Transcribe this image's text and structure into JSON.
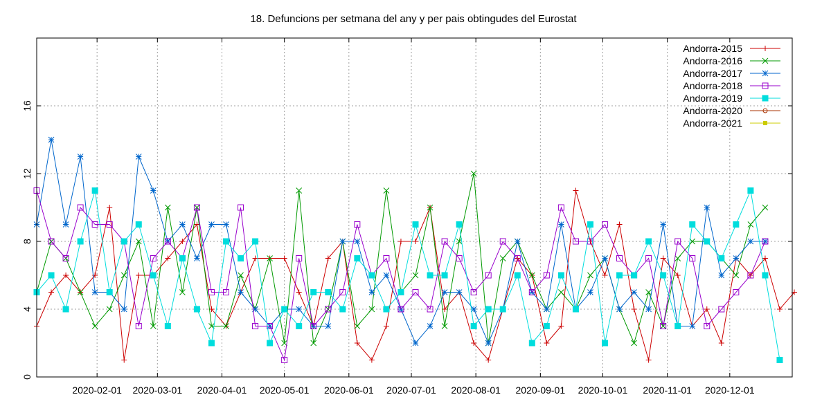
{
  "chart_data": {
    "type": "line",
    "title": "18. Defuncions per setmana del any y per pais obtingudes del Eurostat",
    "xlabel": "",
    "ylabel": "",
    "x_start": "2020-01-03",
    "x_end": "2020-12-31",
    "ylim": [
      0,
      20
    ],
    "x_ticks": [
      "2020-02-01",
      "2020-03-01",
      "2020-04-01",
      "2020-05-01",
      "2020-06-01",
      "2020-07-01",
      "2020-08-01",
      "2020-09-01",
      "2020-10-01",
      "2020-11-01",
      "2020-12-01"
    ],
    "y_ticks": [
      0,
      4,
      8,
      12,
      16
    ],
    "grid": true,
    "legend_position": "top-right",
    "series": [
      {
        "name": "Andorra-2015",
        "color": "#cc0000",
        "marker": "plus",
        "values": [
          3,
          5,
          6,
          5,
          6,
          10,
          1,
          6,
          6,
          7,
          8,
          9,
          4,
          3,
          5,
          7,
          7,
          7,
          5,
          3,
          7,
          8,
          2,
          1,
          3,
          8,
          8,
          10,
          4,
          5,
          2,
          1,
          4,
          7,
          6,
          2,
          3,
          11,
          8,
          6,
          9,
          4,
          1,
          7,
          6,
          3,
          4,
          2,
          7,
          6,
          7,
          4,
          5
        ]
      },
      {
        "name": "Andorra-2016",
        "color": "#009900",
        "marker": "cross",
        "values": [
          5,
          8,
          7,
          5,
          3,
          4,
          6,
          8,
          3,
          10,
          5,
          10,
          3,
          3,
          6,
          4,
          7,
          2,
          11,
          2,
          4,
          8,
          3,
          4,
          11,
          5,
          6,
          10,
          3,
          8,
          12,
          2,
          7,
          8,
          6,
          4,
          5,
          4,
          6,
          7,
          4,
          2,
          5,
          3,
          7,
          8,
          8,
          7,
          6,
          9,
          10
        ]
      },
      {
        "name": "Andorra-2017",
        "color": "#0066cc",
        "marker": "star",
        "values": [
          9,
          14,
          9,
          13,
          5,
          5,
          4,
          13,
          11,
          8,
          9,
          7,
          9,
          9,
          5,
          4,
          3,
          4,
          4,
          3,
          3,
          8,
          8,
          5,
          6,
          4,
          2,
          3,
          5,
          5,
          4,
          2,
          4,
          8,
          5,
          4,
          9,
          4,
          5,
          7,
          4,
          5,
          4,
          9,
          3,
          3,
          10,
          6,
          7,
          8,
          8
        ]
      },
      {
        "name": "Andorra-2018",
        "color": "#9900cc",
        "marker": "square",
        "values": [
          11,
          8,
          7,
          10,
          9,
          9,
          8,
          3,
          7,
          8,
          7,
          10,
          5,
          5,
          10,
          3,
          3,
          1,
          7,
          3,
          4,
          5,
          9,
          6,
          7,
          4,
          5,
          4,
          8,
          7,
          5,
          6,
          8,
          7,
          5,
          6,
          10,
          8,
          8,
          9,
          7,
          6,
          7,
          3,
          8,
          7,
          3,
          4,
          5,
          6,
          8
        ]
      },
      {
        "name": "Andorra-2019",
        "color": "#00dddd",
        "marker": "filled-square",
        "values": [
          5,
          6,
          4,
          8,
          11,
          5,
          8,
          9,
          6,
          3,
          7,
          4,
          2,
          8,
          7,
          8,
          2,
          4,
          3,
          5,
          5,
          4,
          7,
          6,
          4,
          5,
          9,
          6,
          6,
          9,
          3,
          4,
          4,
          6,
          2,
          3,
          6,
          4,
          9,
          2,
          6,
          6,
          8,
          6,
          3,
          9,
          8,
          7,
          9,
          11,
          6,
          1
        ]
      },
      {
        "name": "Andorra-2020",
        "color": "#aa3300",
        "marker": "circle",
        "values": []
      },
      {
        "name": "Andorra-2021",
        "color": "#cccc00",
        "marker": "dot",
        "values": []
      }
    ]
  }
}
